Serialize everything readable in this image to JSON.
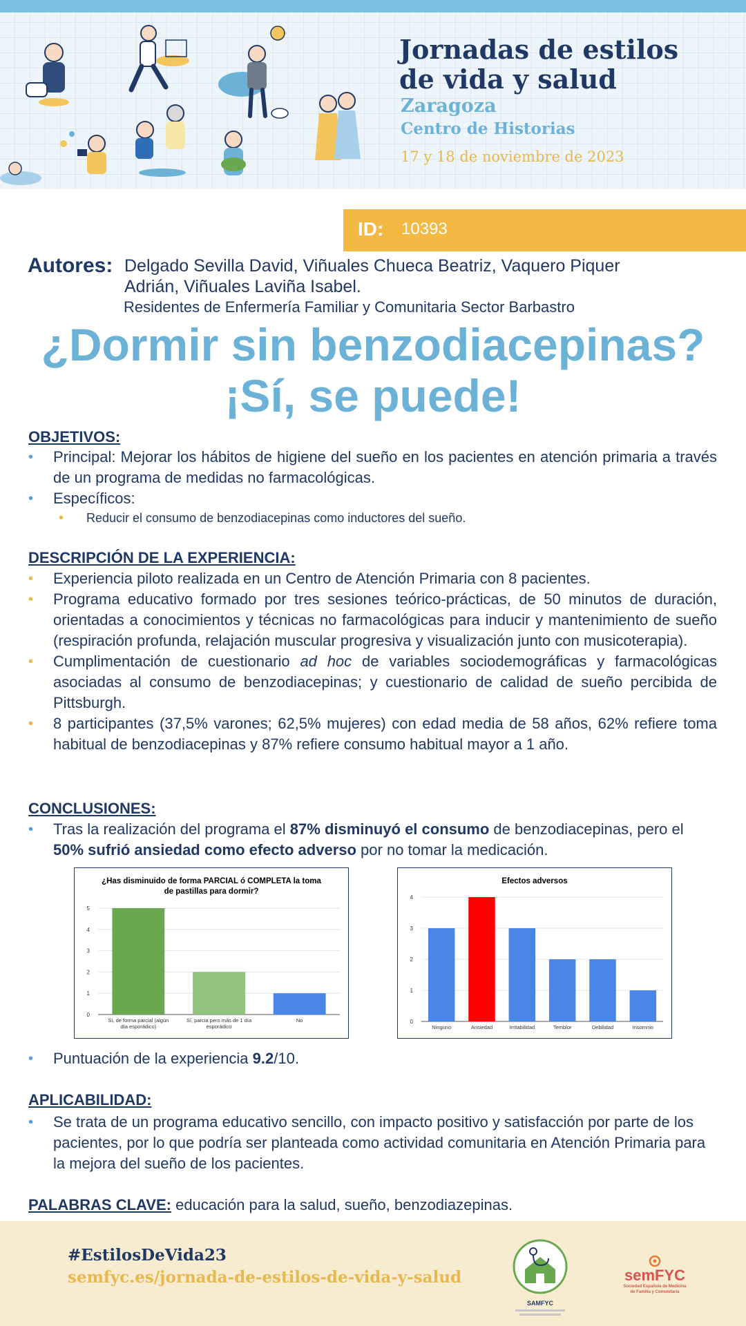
{
  "header": {
    "title_line1": "Jornadas de estilos",
    "title_line2": "de vida y salud",
    "city": "Zaragoza",
    "venue": "Centro de Historias",
    "dates": "17 y  18 de noviembre de 2023"
  },
  "id_band": {
    "label": "ID:",
    "value": "10393",
    "color": "#f4b942"
  },
  "authors": {
    "label": "Autores:",
    "names_line1": "Delgado Sevilla David, Viñuales Chueca Beatriz, Vaquero Piquer",
    "names_line2": "Adrián, Viñuales Laviña Isabel.",
    "affiliation": "Residentes de Enfermería Familiar y Comunitaria Sector Barbastro"
  },
  "title": {
    "line1": "¿Dormir sin benzodiacepinas?",
    "line2": "¡Sí, se puede!",
    "color": "#6cb2d6"
  },
  "objetivos": {
    "heading": "OBJETIVOS:",
    "items": [
      "Principal: Mejorar los hábitos de higiene del sueño en los pacientes en atención primaria a través de un programa de medidas no farmacológicas.",
      "Específicos:"
    ],
    "sub_items": [
      "Reducir el consumo  de benzodiacepinas  como inductores del sueño."
    ]
  },
  "descripcion": {
    "heading": "DESCRIPCIÓN DE LA EXPERIENCIA:",
    "item1": "Experiencia piloto realizada en un Centro de Atención Primaria con 8 pacientes.",
    "item2": "Programa educativo formado por tres sesiones teórico-prácticas, de 50 minutos de duración, orientadas a conocimientos y técnicas no farmacológicas para inducir y mantenimiento de sueño (respiración profunda, relajación muscular progresiva y visualización junto con musicoterapia).",
    "item3_a": "Cumplimentación de cuestionario ",
    "item3_italic": "ad hoc",
    "item3_b": " de variables sociodemográficas y farmacológicas asociadas al consumo de benzodiacepinas; y cuestionario de calidad de sueño percibida de Pittsburgh.",
    "item4": "8 participantes (37,5% varones; 62,5% mujeres) con edad media de 58 años, 62% refiere toma habitual de benzodiacepinas y 87% refiere consumo habitual mayor a 1 año."
  },
  "conclusiones": {
    "heading": "CONCLUSIONES:",
    "t1": "Tras la realización del programa el ",
    "b1": "87%  disminuyó el consumo",
    "t2": " de benzodiacepinas, pero el ",
    "b2": "50%  sufrió ansiedad como efecto adverso",
    "t3": " por no tomar la medicación.",
    "score_text": "Puntuación de la experiencia ",
    "score_value": "9.2",
    "score_suffix": "/10."
  },
  "aplicabilidad": {
    "heading": "APLICABILIDAD:",
    "text": "Se trata de un programa educativo sencillo, con impacto positivo y satisfacción por parte de los pacientes, por lo que podría ser planteada como actividad comunitaria en Atención Primaria para la mejora del sueño de los pacientes."
  },
  "keywords": {
    "heading": "PALABRAS CLAVE:",
    "text": " educación para la salud, sueño, benzodiazepinas."
  },
  "footer": {
    "hashtag": "#EstilosDeVida23",
    "url": "semfyc.es/jornada-de-estilos-de-vida-y-salud",
    "logo1_text": "SAMFYC",
    "logo2_text": "semFYC",
    "logo2_subtitle1": "Sociedad Española de Medicina",
    "logo2_subtitle2": "de Familia y Comunitaria"
  },
  "chart_data": [
    {
      "type": "bar",
      "title_line1": "¿Has disminuido de forma PARCIAL ó COMPLETA la toma",
      "title_line2": "de pastillas para dormir?",
      "categories": [
        [
          "Sí, de forma parcial (algún",
          "día esporádico)"
        ],
        [
          "Sí, parcia pero más de 1 día",
          "esporádico"
        ],
        [
          "No"
        ]
      ],
      "values": [
        5,
        2,
        1
      ],
      "colors": [
        "#6aa84f",
        "#93c47d",
        "#4a86e8"
      ],
      "ylim": [
        0,
        5
      ],
      "yticks": [
        0,
        1,
        2,
        3,
        4,
        5
      ],
      "grid": true
    },
    {
      "type": "bar",
      "title_line1": "Efectos adversos",
      "title_line2": "",
      "categories": [
        [
          "Ninguno"
        ],
        [
          "Ansiedad"
        ],
        [
          "Irritabilidad"
        ],
        [
          "Temblor"
        ],
        [
          "Debilidad"
        ],
        [
          "Insomnio"
        ]
      ],
      "values": [
        3,
        4,
        3,
        2,
        2,
        1
      ],
      "colors": [
        "#4a86e8",
        "#ff0000",
        "#4a86e8",
        "#4a86e8",
        "#4a86e8",
        "#4a86e8"
      ],
      "ylim": [
        0,
        4
      ],
      "yticks": [
        0,
        1,
        2,
        3,
        4
      ],
      "grid": true
    }
  ]
}
